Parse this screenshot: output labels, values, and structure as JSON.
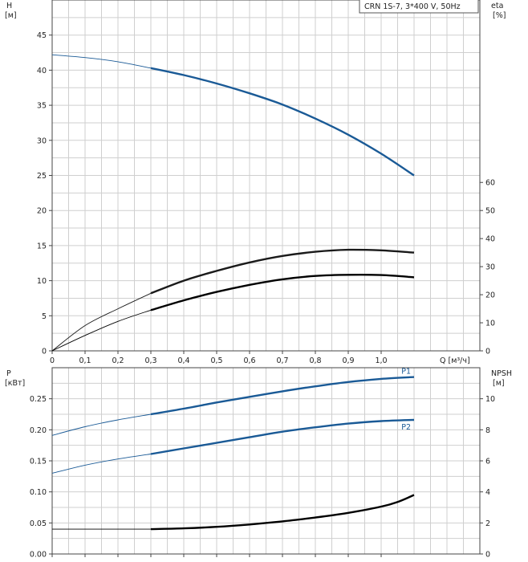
{
  "legend_text": "CRN 1S-7, 3*400 V, 50Hz",
  "chart_data": [
    {
      "type": "line",
      "panel": "top",
      "left_axis": {
        "label_line1": "H",
        "label_line2": "[м]",
        "ylim": [
          0,
          50
        ],
        "ticks": [
          0,
          5,
          10,
          15,
          20,
          25,
          30,
          35,
          40,
          45
        ]
      },
      "right_axis": {
        "label_line1": "eta",
        "label_line2": "[%]",
        "ylim": [
          0,
          125
        ],
        "ticks": [
          0,
          10,
          20,
          30,
          40,
          50,
          60
        ]
      },
      "x_axis": {
        "label": "Q [м³/ч]",
        "xlim": [
          0,
          1.3
        ],
        "ticks": [
          0,
          0.1,
          0.2,
          0.3,
          0.4,
          0.5,
          0.6,
          0.7,
          0.8,
          0.9,
          1.0
        ],
        "tick_labels": [
          "0",
          "0,1",
          "0,2",
          "0,3",
          "0,4",
          "0,5",
          "0,6",
          "0,7",
          "0,8",
          "0,9",
          "1,0"
        ]
      },
      "grid": true,
      "series": [
        {
          "axis": "left",
          "color": "#1a5a96",
          "thin_until": 0.3,
          "x": [
            0,
            0.1,
            0.2,
            0.3,
            0.4,
            0.5,
            0.6,
            0.7,
            0.8,
            0.9,
            1.0,
            1.1
          ],
          "y": [
            42.2,
            41.8,
            41.2,
            40.3,
            39.3,
            38.1,
            36.7,
            35.1,
            33.1,
            30.8,
            28.1,
            25.0
          ]
        },
        {
          "axis": "right",
          "color": "#1a1a1a",
          "thin_until": 0.3,
          "x": [
            0,
            0.1,
            0.2,
            0.3,
            0.4,
            0.5,
            0.6,
            0.7,
            0.8,
            0.9,
            1.0,
            1.1
          ],
          "y": [
            0,
            9.0,
            15.0,
            20.5,
            25.0,
            28.5,
            31.5,
            33.8,
            35.3,
            36.0,
            35.8,
            35.0
          ]
        },
        {
          "axis": "right",
          "color": "#000000",
          "thin_until": 0.3,
          "x": [
            0,
            0.1,
            0.2,
            0.3,
            0.4,
            0.5,
            0.6,
            0.7,
            0.8,
            0.9,
            1.0,
            1.1
          ],
          "y": [
            0,
            5.5,
            10.5,
            14.5,
            18.0,
            21.0,
            23.5,
            25.5,
            26.7,
            27.1,
            27.0,
            26.2
          ]
        }
      ]
    },
    {
      "type": "line",
      "panel": "bottom",
      "left_axis": {
        "label_line1": "P",
        "label_line2": "[кВт]",
        "ylim": [
          0,
          0.3
        ],
        "ticks": [
          0,
          0.05,
          0.1,
          0.15,
          0.2,
          0.25
        ],
        "tick_labels": [
          "0.00",
          "0.05",
          "0.10",
          "0.15",
          "0.20",
          "0.25"
        ]
      },
      "right_axis": {
        "label_line1": "NPSH",
        "label_line2": "[м]",
        "ylim": [
          0,
          12
        ],
        "ticks": [
          0,
          2,
          4,
          6,
          8,
          10
        ]
      },
      "x_axis": {
        "xlim": [
          0,
          1.3
        ],
        "ticks": [
          0,
          0.1,
          0.2,
          0.3,
          0.4,
          0.5,
          0.6,
          0.7,
          0.8,
          0.9,
          1.0
        ]
      },
      "grid": true,
      "series": [
        {
          "name": "P1",
          "axis": "left",
          "color": "#1a5a96",
          "thin_until": 0.3,
          "x": [
            0,
            0.1,
            0.2,
            0.3,
            0.4,
            0.5,
            0.6,
            0.7,
            0.8,
            0.9,
            1.0,
            1.1
          ],
          "y": [
            0.191,
            0.205,
            0.216,
            0.225,
            0.234,
            0.244,
            0.253,
            0.262,
            0.27,
            0.277,
            0.282,
            0.285
          ]
        },
        {
          "name": "P2",
          "axis": "left",
          "color": "#1a5a96",
          "thin_until": 0.3,
          "x": [
            0,
            0.1,
            0.2,
            0.3,
            0.4,
            0.5,
            0.6,
            0.7,
            0.8,
            0.9,
            1.0,
            1.1
          ],
          "y": [
            0.13,
            0.143,
            0.153,
            0.161,
            0.17,
            0.179,
            0.188,
            0.197,
            0.204,
            0.21,
            0.214,
            0.216
          ]
        },
        {
          "axis": "right",
          "color": "#000000",
          "thin_until": 0.3,
          "x": [
            0,
            0.3,
            0.4,
            0.5,
            0.6,
            0.7,
            0.8,
            0.9,
            1.0,
            1.05,
            1.1
          ],
          "y": [
            1.6,
            1.6,
            1.65,
            1.75,
            1.9,
            2.1,
            2.35,
            2.65,
            3.05,
            3.35,
            3.8
          ]
        }
      ]
    }
  ]
}
